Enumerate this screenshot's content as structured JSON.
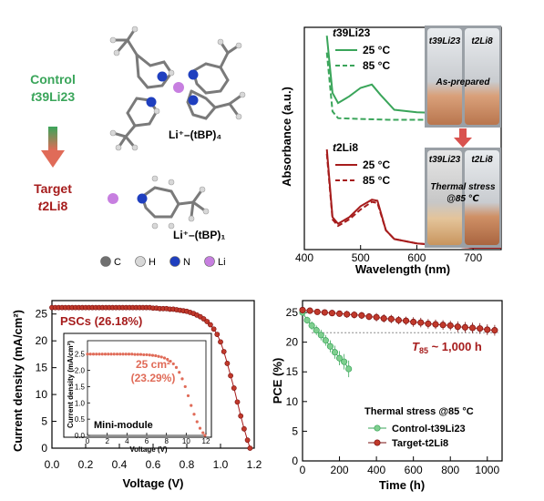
{
  "colors": {
    "control": "#3aa55a",
    "target": "#a61c1c",
    "target_light": "#e06b58",
    "gray_dash": "#888888",
    "carbon": "#707070",
    "hydrogen": "#d8d8d8",
    "nitrogen": "#1f3fbf",
    "lithium": "#c77fe0"
  },
  "panel_a": {
    "control_label": "Control",
    "control_name_prefix": "t",
    "control_name_rest": "39Li23",
    "target_label": "Target",
    "target_name_prefix": "t",
    "target_name_rest": "2Li8",
    "complex_top": "Li⁺–(tBP)₄",
    "complex_bottom": "Li⁺–(tBP)₁",
    "legend": [
      {
        "symbol": "C",
        "color": "#707070"
      },
      {
        "symbol": "H",
        "color": "#d8d8d8"
      },
      {
        "symbol": "N",
        "color": "#1f3fbf"
      },
      {
        "symbol": "Li",
        "color": "#c77fe0"
      }
    ]
  },
  "panel_b": {
    "ylabel": "Absorbance (a.u.)",
    "xlabel": "Wavelength (nm)",
    "xticks": [
      "400",
      "500",
      "600",
      "700"
    ],
    "group_top": {
      "prefix": "t",
      "rest": "39Li23",
      "line1": "25 °C",
      "line2": "85 °C"
    },
    "group_bottom": {
      "prefix": "t",
      "rest": "2Li8",
      "line1": "25 °C",
      "line2": "85 °C"
    },
    "photo_top": {
      "label_left": "t39Li23",
      "label_right": "t2Li8",
      "caption": "As-prepared"
    },
    "photo_bottom": {
      "label_left": "t39Li23",
      "label_right": "t2Li8",
      "caption1": "Thermal stress",
      "caption2": "@85 ℃"
    }
  },
  "chart_data": [
    {
      "type": "line",
      "title": "",
      "xlabel": "Wavelength (nm)",
      "ylabel": "Absorbance (a.u.)",
      "xlim": [
        400,
        750
      ],
      "series": [
        {
          "name": "t39Li23 25 °C",
          "x": [
            440,
            450,
            460,
            480,
            500,
            520,
            535,
            560,
            600,
            650,
            700,
            750
          ],
          "y": [
            1.0,
            0.66,
            0.6,
            0.64,
            0.69,
            0.71,
            0.65,
            0.56,
            0.545,
            0.54,
            0.54,
            0.54
          ]
        },
        {
          "name": "t39Li23 85 °C",
          "x": [
            440,
            450,
            460,
            500,
            550,
            600,
            700,
            750
          ],
          "y": [
            0.9,
            0.55,
            0.51,
            0.505,
            0.5,
            0.5,
            0.5,
            0.5
          ]
        },
        {
          "name": "t2Li8 25 °C",
          "x": [
            440,
            450,
            460,
            480,
            500,
            520,
            530,
            545,
            560,
            600,
            650,
            700,
            750
          ],
          "y": [
            0.45,
            0.14,
            0.11,
            0.14,
            0.19,
            0.22,
            0.215,
            0.08,
            0.04,
            0.02,
            0.01,
            0.0,
            0.0
          ]
        },
        {
          "name": "t2Li8 85 °C",
          "x": [
            440,
            450,
            460,
            480,
            500,
            520,
            530,
            545,
            560,
            600,
            650,
            700,
            750
          ],
          "y": [
            0.43,
            0.13,
            0.1,
            0.13,
            0.175,
            0.21,
            0.205,
            0.08,
            0.04,
            0.02,
            0.01,
            0.0,
            0.0
          ]
        }
      ]
    },
    {
      "type": "scatter",
      "title": "",
      "xlabel": "Voltage (V)",
      "ylabel": "Current density (mA/cm²)",
      "xlim": [
        0,
        1.2
      ],
      "ylim": [
        0,
        27.5
      ],
      "xticks": [
        "0.0",
        "0.2",
        "0.4",
        "0.6",
        "0.8",
        "1.0",
        "1.2"
      ],
      "yticks": [
        "0",
        "5",
        "10",
        "15",
        "20",
        "25"
      ],
      "annotation": "PSCs (26.18%)",
      "series": [
        {
          "name": "PSC",
          "x": [
            0.0,
            0.02,
            0.04,
            0.06,
            0.08,
            0.1,
            0.12,
            0.14,
            0.16,
            0.18,
            0.2,
            0.22,
            0.24,
            0.26,
            0.28,
            0.3,
            0.32,
            0.34,
            0.36,
            0.38,
            0.4,
            0.42,
            0.44,
            0.46,
            0.48,
            0.5,
            0.52,
            0.54,
            0.56,
            0.58,
            0.6,
            0.62,
            0.64,
            0.66,
            0.68,
            0.7,
            0.72,
            0.74,
            0.76,
            0.78,
            0.8,
            0.82,
            0.84,
            0.86,
            0.88,
            0.9,
            0.92,
            0.94,
            0.96,
            0.98,
            1.0,
            1.02,
            1.04,
            1.06,
            1.08,
            1.1,
            1.12,
            1.14,
            1.16,
            1.175
          ],
          "y": [
            26.2,
            26.2,
            26.2,
            26.2,
            26.2,
            26.2,
            26.2,
            26.2,
            26.2,
            26.2,
            26.2,
            26.2,
            26.2,
            26.2,
            26.2,
            26.2,
            26.2,
            26.2,
            26.2,
            26.2,
            26.2,
            26.2,
            26.2,
            26.2,
            26.2,
            26.2,
            26.2,
            26.2,
            26.2,
            26.2,
            26.1,
            26.1,
            26.0,
            26.0,
            26.0,
            25.9,
            25.9,
            25.8,
            25.7,
            25.6,
            25.5,
            25.3,
            25.1,
            24.8,
            24.5,
            24.1,
            23.6,
            23.0,
            22.2,
            21.2,
            19.8,
            18.0,
            15.8,
            13.5,
            11.2,
            8.6,
            6.0,
            3.6,
            1.5,
            0.0
          ]
        }
      ]
    },
    {
      "type": "scatter",
      "title": "",
      "xlabel": "Voltage (V)",
      "ylabel": "Current density (mA/cm²)",
      "xlim": [
        0,
        12
      ],
      "ylim": [
        0,
        2.8
      ],
      "xticks": [
        "0",
        "2",
        "4",
        "6",
        "8",
        "10",
        "12"
      ],
      "yticks": [
        "0.0",
        "0.5",
        "1.0",
        "1.5",
        "2.0",
        "2.5"
      ],
      "annotation_line1": "25 cm²",
      "annotation_line2": "(23.29%)",
      "label": "Mini-module",
      "series": [
        {
          "name": "Mini-module",
          "x": [
            0.0,
            0.3,
            0.6,
            0.9,
            1.2,
            1.5,
            1.8,
            2.1,
            2.4,
            2.7,
            3.0,
            3.3,
            3.6,
            3.9,
            4.2,
            4.5,
            4.8,
            5.1,
            5.4,
            5.7,
            6.0,
            6.3,
            6.6,
            6.9,
            7.2,
            7.5,
            7.8,
            8.1,
            8.4,
            8.7,
            9.0,
            9.3,
            9.6,
            9.9,
            10.2,
            10.5,
            10.8,
            11.1,
            11.4,
            11.7,
            11.9
          ],
          "y": [
            2.5,
            2.5,
            2.5,
            2.5,
            2.5,
            2.5,
            2.5,
            2.5,
            2.5,
            2.5,
            2.5,
            2.5,
            2.5,
            2.5,
            2.5,
            2.5,
            2.49,
            2.49,
            2.49,
            2.48,
            2.48,
            2.47,
            2.46,
            2.45,
            2.43,
            2.41,
            2.38,
            2.34,
            2.28,
            2.2,
            2.09,
            1.94,
            1.74,
            1.5,
            1.22,
            0.92,
            0.65,
            0.42,
            0.22,
            0.08,
            0.0
          ]
        }
      ]
    },
    {
      "type": "scatter",
      "title": "",
      "xlabel": "Time (h)",
      "ylabel": "PCE (%)",
      "xlim": [
        0,
        1080
      ],
      "ylim": [
        0,
        27
      ],
      "xticks": [
        "0",
        "200",
        "400",
        "600",
        "800",
        "1000"
      ],
      "yticks": [
        "0",
        "5",
        "10",
        "15",
        "20",
        "25"
      ],
      "annotation_prefix": "T",
      "annotation_sub": "85",
      "annotation_rest": " ~ 1,000 h",
      "legend_title": "Thermal stress @85 °C",
      "series": [
        {
          "name": "Control-t39Li23",
          "x": [
            0,
            25,
            50,
            75,
            100,
            125,
            150,
            175,
            200,
            225,
            250
          ],
          "y": [
            25.0,
            23.7,
            22.8,
            22.0,
            21.2,
            20.3,
            19.3,
            18.3,
            17.3,
            16.7,
            15.5
          ],
          "err": [
            0,
            0.6,
            0.7,
            0.8,
            0.9,
            0.9,
            1.0,
            1.1,
            1.2,
            1.3,
            1.4
          ]
        },
        {
          "name": "Target-t2Li8",
          "x": [
            0,
            40,
            80,
            120,
            160,
            200,
            240,
            280,
            320,
            360,
            400,
            440,
            480,
            520,
            560,
            600,
            640,
            680,
            720,
            760,
            800,
            840,
            880,
            920,
            960,
            1000,
            1040
          ],
          "y": [
            25.4,
            25.3,
            25.1,
            25.0,
            24.9,
            24.8,
            24.7,
            24.6,
            24.5,
            24.3,
            24.2,
            24.0,
            23.9,
            23.7,
            23.6,
            23.4,
            23.3,
            23.1,
            23.0,
            22.9,
            22.8,
            22.6,
            22.5,
            22.4,
            22.3,
            22.1,
            22.0
          ],
          "err": [
            0.3,
            0.4,
            0.4,
            0.5,
            0.5,
            0.5,
            0.6,
            0.6,
            0.6,
            0.6,
            0.7,
            0.7,
            0.7,
            0.7,
            0.7,
            0.8,
            0.8,
            0.8,
            0.8,
            0.8,
            0.8,
            0.9,
            0.9,
            0.9,
            0.9,
            0.9,
            0.9
          ]
        }
      ],
      "reference_line_y": 21.6
    }
  ]
}
